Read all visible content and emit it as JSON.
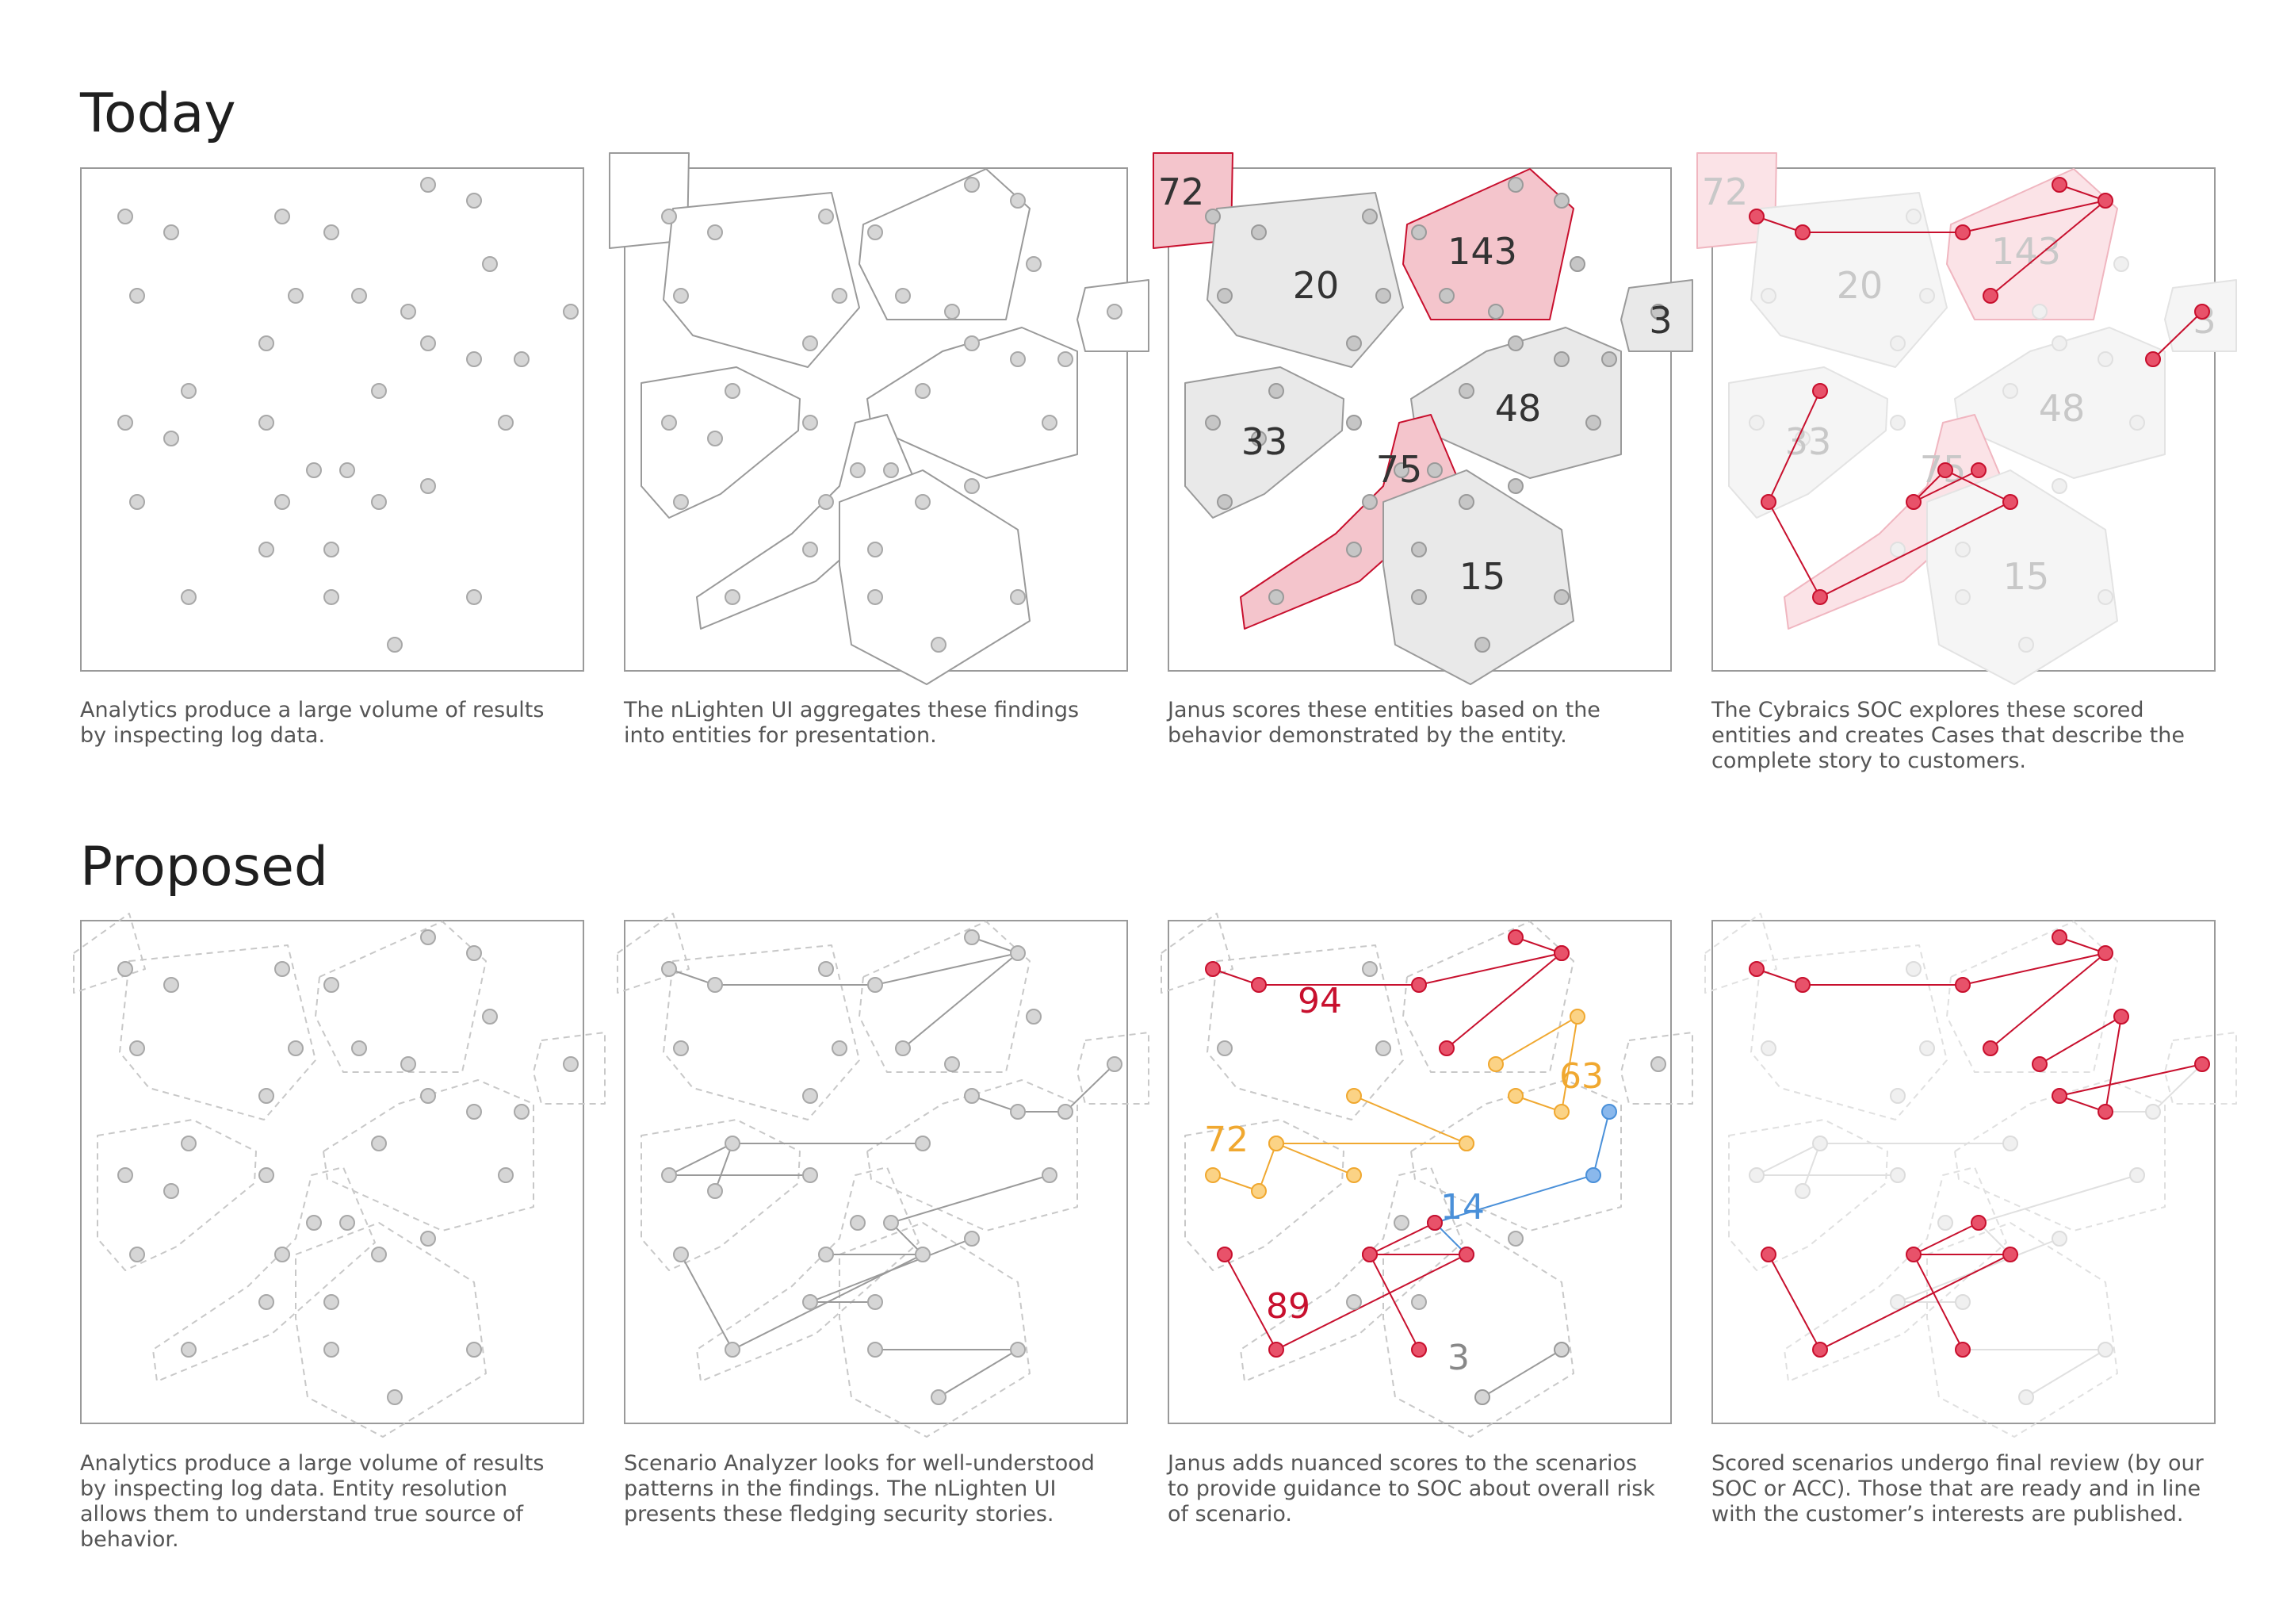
{
  "rows": {
    "today": {
      "title": "Today",
      "captions": [
        "Analytics produce a large volume of results\nby inspecting log data.",
        "The nLighten UI aggregates these findings\ninto entities for presentation.",
        "Janus scores these entities based on the\nbehavior demonstrated by the entity.",
        "The Cybraics SOC explores these scored\nentities and creates Cases that describe the\ncomplete story to customers."
      ],
      "entity_scores": [
        "72",
        "20",
        "143",
        "3",
        "33",
        "48",
        "75",
        "15"
      ]
    },
    "proposed": {
      "title": "Proposed",
      "captions": [
        "Analytics produce a large volume of results\nby inspecting log data. Entity resolution\nallows them to understand true source of\nbehavior.",
        "Scenario Analyzer looks for well-understood\npatterns in the findings. The nLighten UI\npresents these fledging security stories.",
        "Janus adds nuanced scores to the scenarios\nto provide guidance to SOC about overall risk\nof scenario.",
        "Scored scenarios undergo final review (by our\nSOC or ACC). Those that are ready and in line\nwith the customer’s interests are published."
      ],
      "scenario_scores": [
        "94",
        "72",
        "63",
        "14",
        "89",
        "3"
      ]
    }
  },
  "colors": {
    "red": "#c8102e",
    "red_fill": "#f4c5cc",
    "red_node": "#e8526a",
    "orange": "#f0a830",
    "orange_node": "#fbd386",
    "blue": "#4a90d9",
    "blue_node": "#8ab8ec",
    "gray_node": "#d6d6d6",
    "gray_line": "#9a9a9a"
  }
}
